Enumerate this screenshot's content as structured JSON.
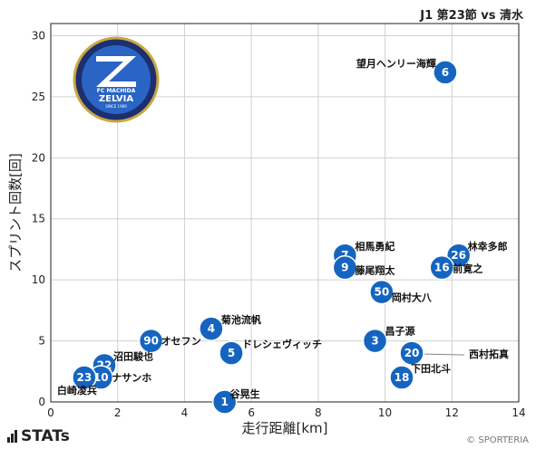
{
  "header": {
    "match_label": "J1 第23節 vs 清水"
  },
  "footer": {
    "brand": "STATs",
    "credit": "© SPORTERIA"
  },
  "colors": {
    "point": "#1565c0",
    "point_stroke": "#ffffff",
    "grid": "#d0d0d0"
  },
  "logo": {
    "name": "fc-machida-zelvia-crest",
    "text_top": "FC MACHIDA",
    "text_mid": "ZELVIA",
    "text_bot": "SINCE 1989"
  },
  "chart_data": {
    "type": "scatter",
    "title": "",
    "xlabel": "走行距離[km]",
    "ylabel": "スプリント回数[回]",
    "xlim": [
      0,
      14
    ],
    "ylim": [
      0,
      31
    ],
    "xticks": [
      0,
      2,
      4,
      6,
      8,
      10,
      12,
      14
    ],
    "yticks": [
      0,
      5,
      10,
      15,
      20,
      25,
      30
    ],
    "grid": true,
    "points": [
      {
        "number": "6",
        "name": "望月ヘンリー海輝",
        "x": 11.8,
        "y": 27
      },
      {
        "number": "26",
        "name": "林幸多郎",
        "x": 12.2,
        "y": 12
      },
      {
        "number": "16",
        "name": "前寛之",
        "x": 11.7,
        "y": 11
      },
      {
        "number": "7",
        "name": "相馬勇紀",
        "x": 8.8,
        "y": 12
      },
      {
        "number": "9",
        "name": "藤尾翔太",
        "x": 8.8,
        "y": 11
      },
      {
        "number": "50",
        "name": "岡村大八",
        "x": 9.9,
        "y": 9
      },
      {
        "number": "3",
        "name": "昌子源",
        "x": 9.7,
        "y": 5
      },
      {
        "number": "20",
        "name": "西村拓真",
        "x": 10.8,
        "y": 4
      },
      {
        "number": "18",
        "name": "下田北斗",
        "x": 10.5,
        "y": 2
      },
      {
        "number": "4",
        "name": "菊池流帆",
        "x": 4.8,
        "y": 6
      },
      {
        "number": "5",
        "name": "ドレシェヴィッチ",
        "x": 5.4,
        "y": 4
      },
      {
        "number": "90",
        "name": "オセフン",
        "x": 3.0,
        "y": 5
      },
      {
        "number": "22",
        "name": "沼田駿也",
        "x": 1.6,
        "y": 3
      },
      {
        "number": "10",
        "name": "ナサンホ",
        "x": 1.5,
        "y": 2
      },
      {
        "number": "23",
        "name": "白崎凌兵",
        "x": 1.0,
        "y": 2
      },
      {
        "number": "1",
        "name": "谷晃生",
        "x": 5.2,
        "y": 0
      }
    ]
  }
}
